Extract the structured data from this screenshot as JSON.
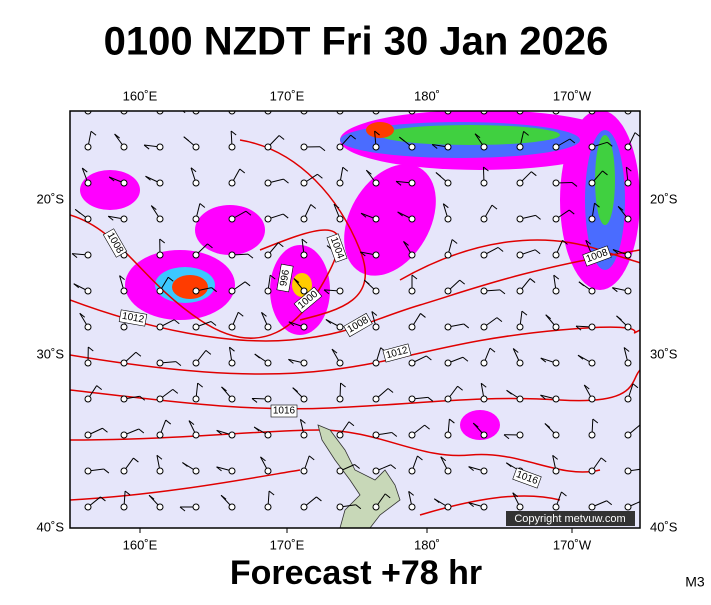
{
  "header": {
    "title": "0100 NZDT Fri 30 Jan 2026"
  },
  "footer": {
    "forecast": "Forecast +78 hr",
    "model": "M3"
  },
  "copyright": "Copyright metvuw.com",
  "axes": {
    "longitudes": [
      "160˚E",
      "170˚E",
      "180˚",
      "170˚W"
    ],
    "latitudes": [
      "20˚S",
      "30˚S",
      "40˚S"
    ]
  },
  "isobar_labels": [
    "1008",
    "1012",
    "1004",
    "996",
    "1000",
    "1008",
    "1012",
    "1016",
    "1016",
    "1008"
  ]
}
